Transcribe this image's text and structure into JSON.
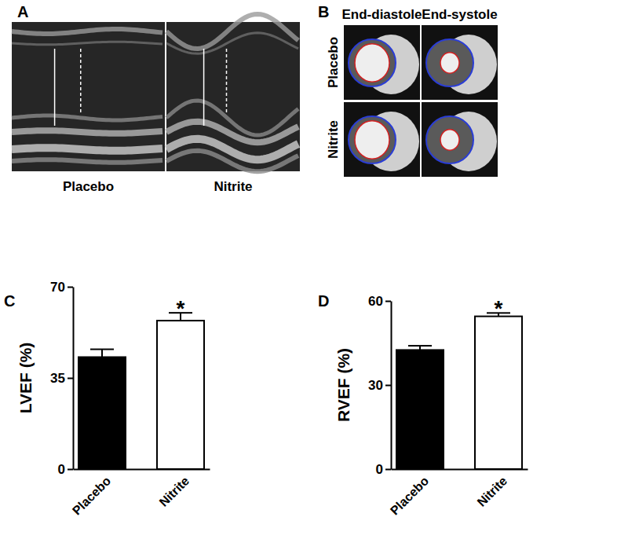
{
  "panel_labels": [
    "A",
    "B",
    "C",
    "D"
  ],
  "image_panels": [
    {
      "captions": [
        "Placebo",
        "Nitrite"
      ]
    },
    {
      "columns": [
        "End-diastole",
        "End-systole"
      ],
      "rows": [
        "Placebo",
        "Nitrite"
      ]
    }
  ],
  "chart_data": [
    {
      "type": "bar",
      "ylabel": "LVEF (%)",
      "categories": [
        "Placebo",
        "Nitrite"
      ],
      "values": [
        43,
        57
      ],
      "errors": [
        3,
        3
      ],
      "colors": [
        "#000000",
        "#ffffff"
      ],
      "ylim": [
        0,
        70
      ],
      "yticks": [
        0,
        35,
        70
      ],
      "annotations": [
        {
          "text": "*",
          "category": "Nitrite"
        }
      ]
    },
    {
      "type": "bar",
      "ylabel": "RVEF (%)",
      "categories": [
        "Placebo",
        "Nitrite"
      ],
      "values": [
        42.5,
        54.5
      ],
      "errors": [
        1.5,
        1.2
      ],
      "colors": [
        "#000000",
        "#ffffff"
      ],
      "ylim": [
        0,
        60
      ],
      "yticks": [
        0,
        30,
        60
      ],
      "annotations": [
        {
          "text": "*",
          "category": "Nitrite"
        }
      ]
    }
  ]
}
